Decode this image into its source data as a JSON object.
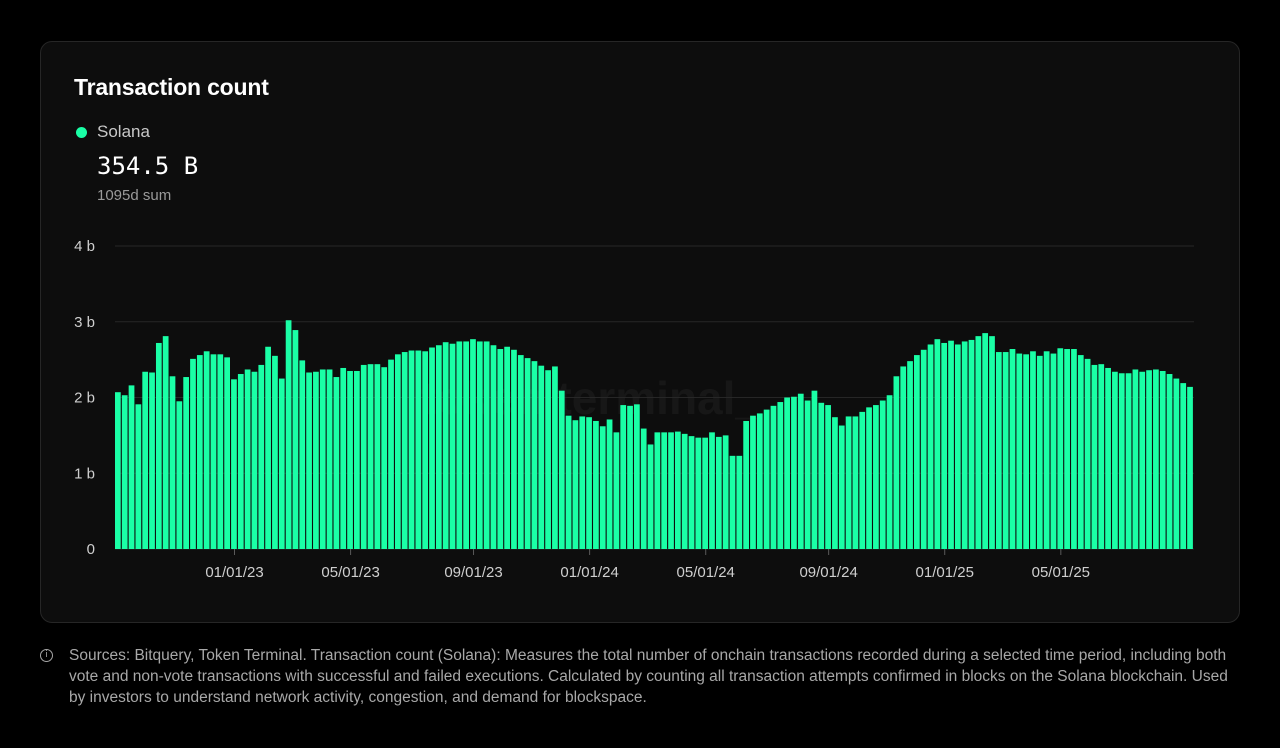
{
  "card": {
    "title": "Transaction count",
    "legend_name": "Solana",
    "legend_color": "#1affa6",
    "total_value": "354.5 B",
    "total_caption": "1095d sum",
    "watermark": "token terminal_"
  },
  "footnote": {
    "text": "Sources: Bitquery, Token Terminal. Transaction count (Solana): Measures the total number of onchain transactions recorded during a selected time period, including both vote and non-vote transactions with successful and failed executions. Calculated by counting all transaction attempts confirmed in blocks on the Solana blockchain. Used by investors to understand network activity, congestion, and demand for blockspace."
  },
  "chart_data": {
    "type": "bar",
    "series": [
      {
        "name": "Solana",
        "color": "#1affa6"
      }
    ],
    "bar_interval": "weekly",
    "ylim": [
      0,
      4
    ],
    "y_unit": "billions",
    "yticks": [
      0,
      1,
      2,
      3,
      4
    ],
    "ytick_labels": [
      "0",
      "1 b",
      "2 b",
      "3 b",
      "4 b"
    ],
    "xtick_labels": [
      "01/01/23",
      "05/01/23",
      "09/01/23",
      "01/01/24",
      "05/01/24",
      "09/01/24",
      "01/01/25",
      "05/01/25"
    ],
    "xtick_bar_index": [
      17,
      34,
      52,
      69,
      86,
      104,
      121,
      138
    ],
    "grid": true,
    "values": [
      2.07,
      2.03,
      2.16,
      1.91,
      2.34,
      2.33,
      2.72,
      2.81,
      2.28,
      1.95,
      2.27,
      2.51,
      2.56,
      2.61,
      2.57,
      2.57,
      2.53,
      2.24,
      2.31,
      2.37,
      2.34,
      2.43,
      2.67,
      2.55,
      2.25,
      3.02,
      2.89,
      2.49,
      2.33,
      2.34,
      2.37,
      2.37,
      2.27,
      2.39,
      2.35,
      2.35,
      2.43,
      2.44,
      2.44,
      2.4,
      2.5,
      2.57,
      2.6,
      2.62,
      2.62,
      2.61,
      2.66,
      2.69,
      2.73,
      2.71,
      2.74,
      2.74,
      2.77,
      2.74,
      2.74,
      2.69,
      2.64,
      2.67,
      2.63,
      2.56,
      2.52,
      2.48,
      2.42,
      2.36,
      2.41,
      2.09,
      1.76,
      1.7,
      1.75,
      1.74,
      1.69,
      1.62,
      1.71,
      1.54,
      1.9,
      1.89,
      1.91,
      1.59,
      1.38,
      1.54,
      1.54,
      1.54,
      1.55,
      1.52,
      1.49,
      1.47,
      1.47,
      1.54,
      1.48,
      1.5,
      1.23,
      1.23,
      1.69,
      1.76,
      1.79,
      1.84,
      1.89,
      1.94,
      2.0,
      2.01,
      2.05,
      1.96,
      2.09,
      1.93,
      1.9,
      1.74,
      1.63,
      1.75,
      1.75,
      1.81,
      1.87,
      1.9,
      1.96,
      2.03,
      2.28,
      2.41,
      2.48,
      2.56,
      2.63,
      2.7,
      2.77,
      2.72,
      2.75,
      2.7,
      2.74,
      2.76,
      2.81,
      2.85,
      2.81,
      2.6,
      2.6,
      2.64,
      2.58,
      2.57,
      2.61,
      2.55,
      2.61,
      2.58,
      2.65,
      2.64,
      2.64,
      2.56,
      2.51,
      2.43,
      2.44,
      2.39,
      2.34,
      2.32,
      2.32,
      2.37,
      2.34,
      2.36,
      2.37,
      2.35,
      2.31,
      2.25,
      2.19,
      2.14
    ]
  }
}
